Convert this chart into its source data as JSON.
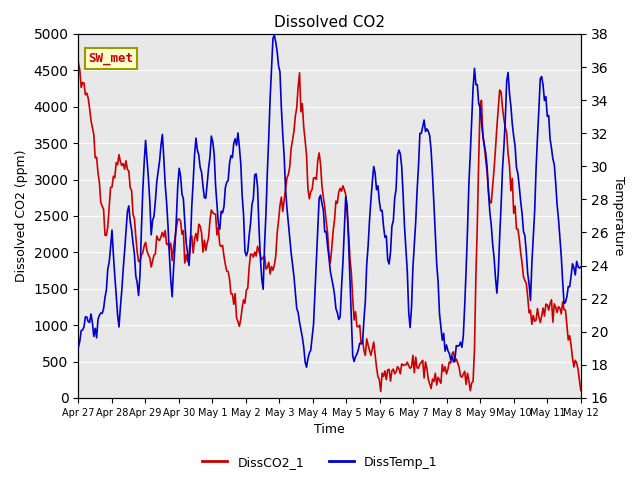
{
  "title": "Dissolved CO2",
  "xlabel": "Time",
  "ylabel_left": "Dissolved CO2 (ppm)",
  "ylabel_right": "Temperature",
  "legend_label_red": "DissCO2_1",
  "legend_label_blue": "DissTemp_1",
  "station_label": "SW_met",
  "ylim_left": [
    0,
    5000
  ],
  "ylim_right": [
    16,
    38
  ],
  "yticks_left": [
    0,
    500,
    1000,
    1500,
    2000,
    2500,
    3000,
    3500,
    4000,
    4500,
    5000
  ],
  "yticks_right": [
    16,
    18,
    20,
    22,
    24,
    26,
    28,
    30,
    32,
    34,
    36,
    38
  ],
  "xtick_labels": [
    "Apr 27",
    "Apr 28",
    "Apr 29",
    "Apr 30",
    "May 1",
    "May 2",
    "May 3",
    "May 4",
    "May 5",
    "May 6",
    "May 7",
    "May 8",
    "May 9",
    "May 10",
    "May 11",
    "May 12"
  ],
  "bg_color": "#e8e8e8",
  "line_color_red": "#cc0000",
  "line_color_blue": "#0000cc",
  "station_box_bg": "#ffffcc",
  "station_box_edge": "#999900",
  "station_text_color": "#cc0000"
}
